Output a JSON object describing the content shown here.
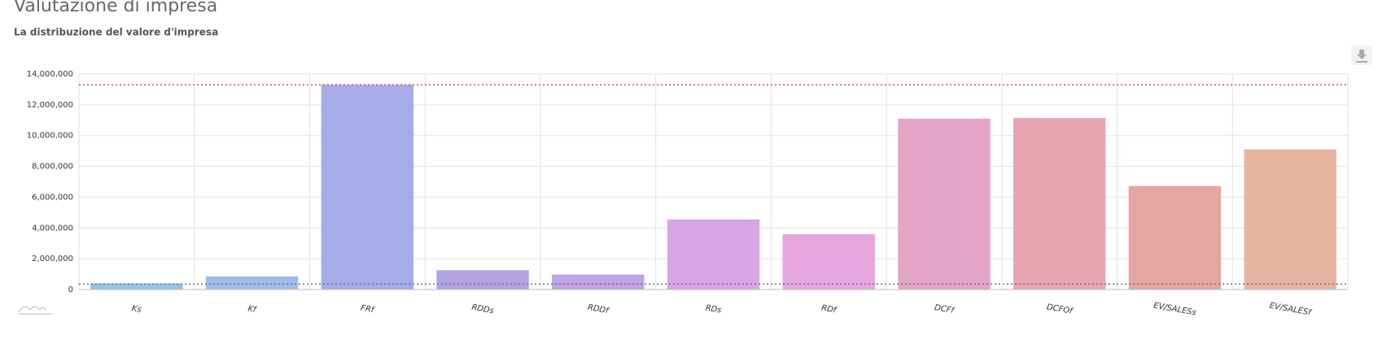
{
  "chart_data": {
    "type": "bar",
    "title": "Valutazione di impresa",
    "subtitle": "La distribuzione del valore d'impresa",
    "categories": [
      "Ks",
      "Kf",
      "FRf",
      "RDDs",
      "RDDf",
      "RDs",
      "RDf",
      "DCFf",
      "DCFOf",
      "EV/SALESs",
      "EV/SALESf"
    ],
    "values": [
      400000,
      850000,
      13300000,
      1250000,
      970000,
      4550000,
      3590000,
      11100000,
      11150000,
      6720000,
      9100000
    ],
    "colors": [
      "#8fc1e6",
      "#9ab8e6",
      "#a0a8e6",
      "#ae9fe3",
      "#bc9ee3",
      "#d7a0e3",
      "#e6a0dc",
      "#e4a0c5",
      "#e6a0b0",
      "#e4a09c",
      "#e4b09c"
    ],
    "ylim": [
      0,
      14000000
    ],
    "yticks": [
      0,
      {
        "value": 2000000,
        "label": "2,000,000"
      },
      {
        "value": 4000000,
        "label": "4,000,000"
      },
      {
        "value": 6000000,
        "label": "6,000,000"
      },
      {
        "value": 8000000,
        "label": "8,000,000"
      },
      {
        "value": 10000000,
        "label": "10,000,000"
      },
      {
        "value": 12000000,
        "label": "12,000,000"
      },
      {
        "value": 14000000,
        "label": "14,000,000"
      }
    ],
    "grid": true,
    "plot_lines": [
      {
        "value": 13300000,
        "color": "#c0506a"
      },
      {
        "value": 350000,
        "color": "#6a6a90"
      }
    ]
  }
}
